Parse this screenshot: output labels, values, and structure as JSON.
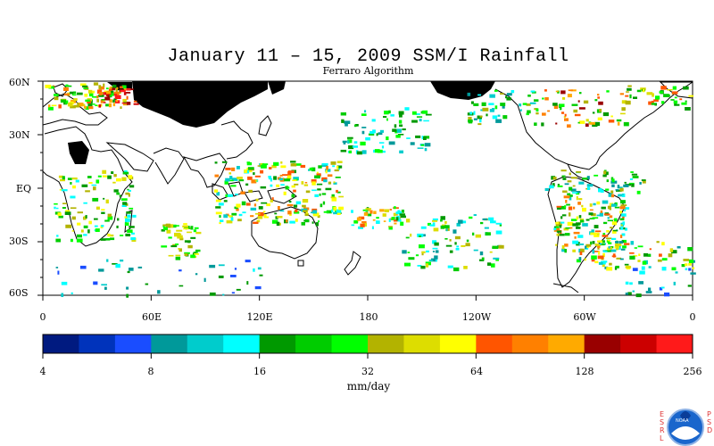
{
  "title": "January 11 – 15, 2009 SSM/I Rainfall",
  "subtitle": "Ferraro Algorithm",
  "map": {
    "lat_labels": [
      "60N",
      "30N",
      "EQ",
      "30S",
      "60S"
    ],
    "lon_labels": [
      "0",
      "60E",
      "120E",
      "180",
      "120W",
      "60W",
      "0"
    ],
    "lat_range": [
      -60,
      60
    ],
    "lon_range": [
      0,
      360
    ],
    "missing_color": "#000000",
    "land_outline_color": "#000000"
  },
  "colorbar": {
    "units": "mm/day",
    "tick_labels": [
      "4",
      "8",
      "16",
      "32",
      "64",
      "128",
      "256"
    ],
    "colors": [
      "#001a80",
      "#0033bb",
      "#1a4dff",
      "#00999a",
      "#00cccc",
      "#00ffff",
      "#009900",
      "#00cc00",
      "#00ff00",
      "#b3b300",
      "#dddd00",
      "#ffff00",
      "#ff5500",
      "#ff8000",
      "#ffaa00",
      "#990000",
      "#cc0000",
      "#ff1a1a"
    ]
  },
  "logo": {
    "left_letters": [
      "E",
      "S",
      "R",
      "L"
    ],
    "right_letters": [
      "P",
      "S",
      "D"
    ],
    "emblem_text": "NOAA"
  }
}
